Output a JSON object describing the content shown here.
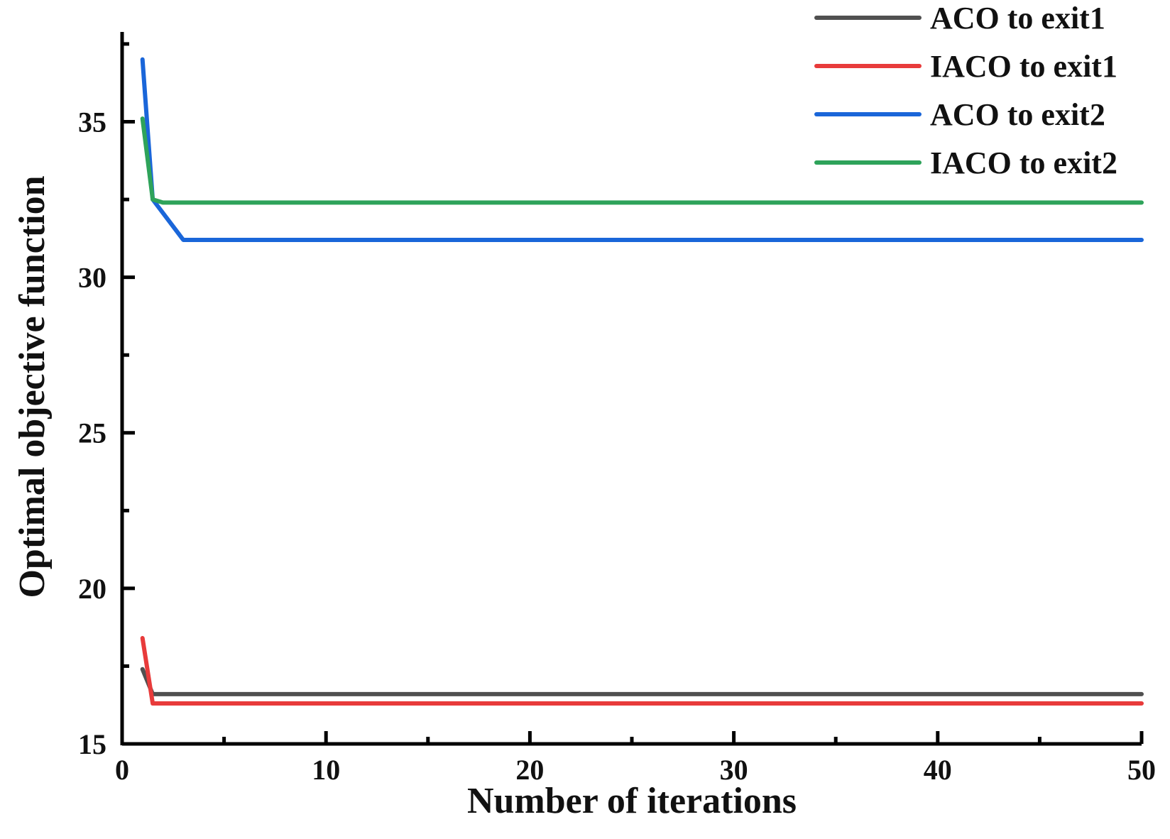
{
  "chart_data": {
    "type": "line",
    "title": "",
    "xlabel": "Number of iterations",
    "ylabel": "Optimal objective function",
    "xlim": [
      0,
      50
    ],
    "ylim": [
      15,
      38
    ],
    "x_ticks": [
      0,
      10,
      20,
      30,
      40,
      50
    ],
    "y_ticks": [
      15,
      20,
      25,
      30,
      35
    ],
    "grid": false,
    "legend_position": "top-right",
    "series": [
      {
        "name": "ACO to exit1",
        "color": "#505050",
        "x": [
          1,
          1.5,
          50
        ],
        "y": [
          17.4,
          16.6,
          16.6
        ]
      },
      {
        "name": "IACO to exit1",
        "color": "#e83b3b",
        "x": [
          1,
          1.5,
          50
        ],
        "y": [
          18.4,
          16.3,
          16.3
        ]
      },
      {
        "name": "ACO to exit2",
        "color": "#1a66d9",
        "x": [
          1,
          1.5,
          3,
          50
        ],
        "y": [
          37.0,
          32.5,
          31.2,
          31.2
        ]
      },
      {
        "name": "IACO to exit2",
        "color": "#2ea35a",
        "x": [
          1,
          1.5,
          2,
          50
        ],
        "y": [
          35.1,
          32.5,
          32.4,
          32.4
        ]
      }
    ]
  }
}
